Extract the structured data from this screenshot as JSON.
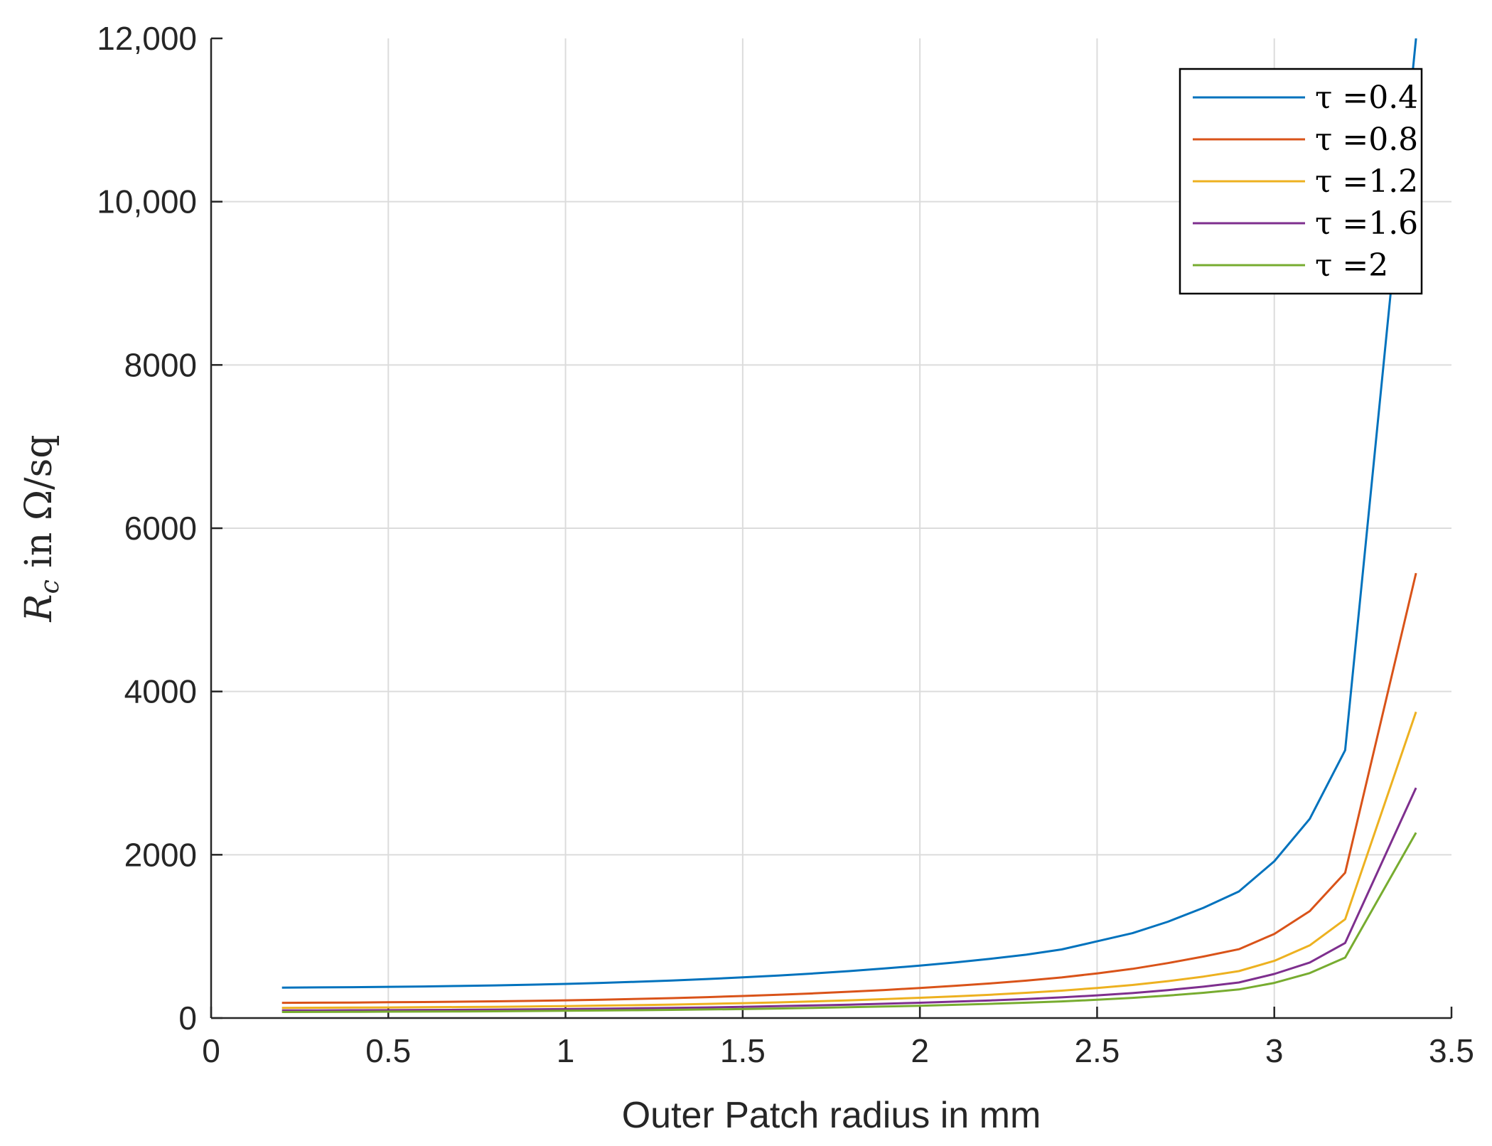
{
  "chart_data": {
    "type": "line",
    "xlabel": "Outer Patch radius in mm",
    "ylabel": {
      "symbol": "R",
      "subscript": "c",
      "text": " in Ω/sq"
    },
    "xlim": [
      0,
      3.5
    ],
    "ylim": [
      0,
      12000
    ],
    "xticks": [
      0,
      0.5,
      1,
      1.5,
      2,
      2.5,
      3,
      3.5
    ],
    "xtick_labels": [
      "0",
      "0.5",
      "1",
      "1.5",
      "2",
      "2.5",
      "3",
      "3.5"
    ],
    "yticks": [
      0,
      2000,
      4000,
      6000,
      8000,
      10000,
      12000
    ],
    "ytick_labels": [
      "0",
      "2000",
      "4000",
      "6000",
      "8000",
      "10,000",
      "12,000"
    ],
    "grid": true,
    "legend_position": "top-right",
    "x": [
      0.2,
      0.3,
      0.4,
      0.5,
      0.6,
      0.7,
      0.8,
      0.9,
      1.0,
      1.1,
      1.2,
      1.3,
      1.4,
      1.5,
      1.6,
      1.7,
      1.8,
      1.9,
      2.0,
      2.1,
      2.2,
      2.3,
      2.4,
      2.5,
      2.6,
      2.7,
      2.8,
      2.9,
      3.0,
      3.1,
      3.2,
      3.4
    ],
    "series": [
      {
        "name": "τ =0.4",
        "color": "#0072BD",
        "values": [
          372,
          375,
          378,
          382,
          387,
          393,
          400,
          408,
          418,
          430,
          444,
          460,
          478,
          498,
          520,
          546,
          575,
          607,
          642,
          682,
          726,
          776,
          840,
          940,
          1040,
          1180,
          1350,
          1550,
          1920,
          2440,
          3280,
          12000
        ]
      },
      {
        "name": "τ =0.8",
        "color": "#D95319",
        "values": [
          186,
          188,
          190,
          193,
          196,
          200,
          205,
          210,
          217,
          225,
          234,
          244,
          256,
          270,
          285,
          302,
          322,
          343,
          368,
          395,
          425,
          458,
          497,
          547,
          603,
          673,
          753,
          843,
          1030,
          1310,
          1780,
          5450
        ]
      },
      {
        "name": "τ =1.2",
        "color": "#EDB120",
        "values": [
          124,
          126,
          128,
          130,
          132,
          135,
          138,
          142,
          146,
          152,
          158,
          165,
          173,
          182,
          192,
          204,
          217,
          232,
          248,
          266,
          286,
          309,
          335,
          368,
          405,
          452,
          508,
          575,
          700,
          890,
          1210,
          3750
        ]
      },
      {
        "name": "τ =1.6",
        "color": "#7E2F8E",
        "values": [
          93,
          94,
          96,
          97,
          99,
          101,
          104,
          107,
          110,
          114,
          119,
          124,
          130,
          137,
          145,
          154,
          164,
          175,
          187,
          201,
          216,
          233,
          253,
          278,
          306,
          342,
          384,
          435,
          540,
          680,
          920,
          2820
        ]
      },
      {
        "name": "τ =2",
        "color": "#77AC30",
        "values": [
          74,
          75,
          76,
          78,
          79,
          81,
          83,
          86,
          89,
          92,
          96,
          100,
          105,
          110,
          117,
          124,
          132,
          141,
          151,
          162,
          174,
          188,
          204,
          224,
          247,
          275,
          309,
          350,
          430,
          550,
          740,
          2270
        ]
      }
    ]
  }
}
